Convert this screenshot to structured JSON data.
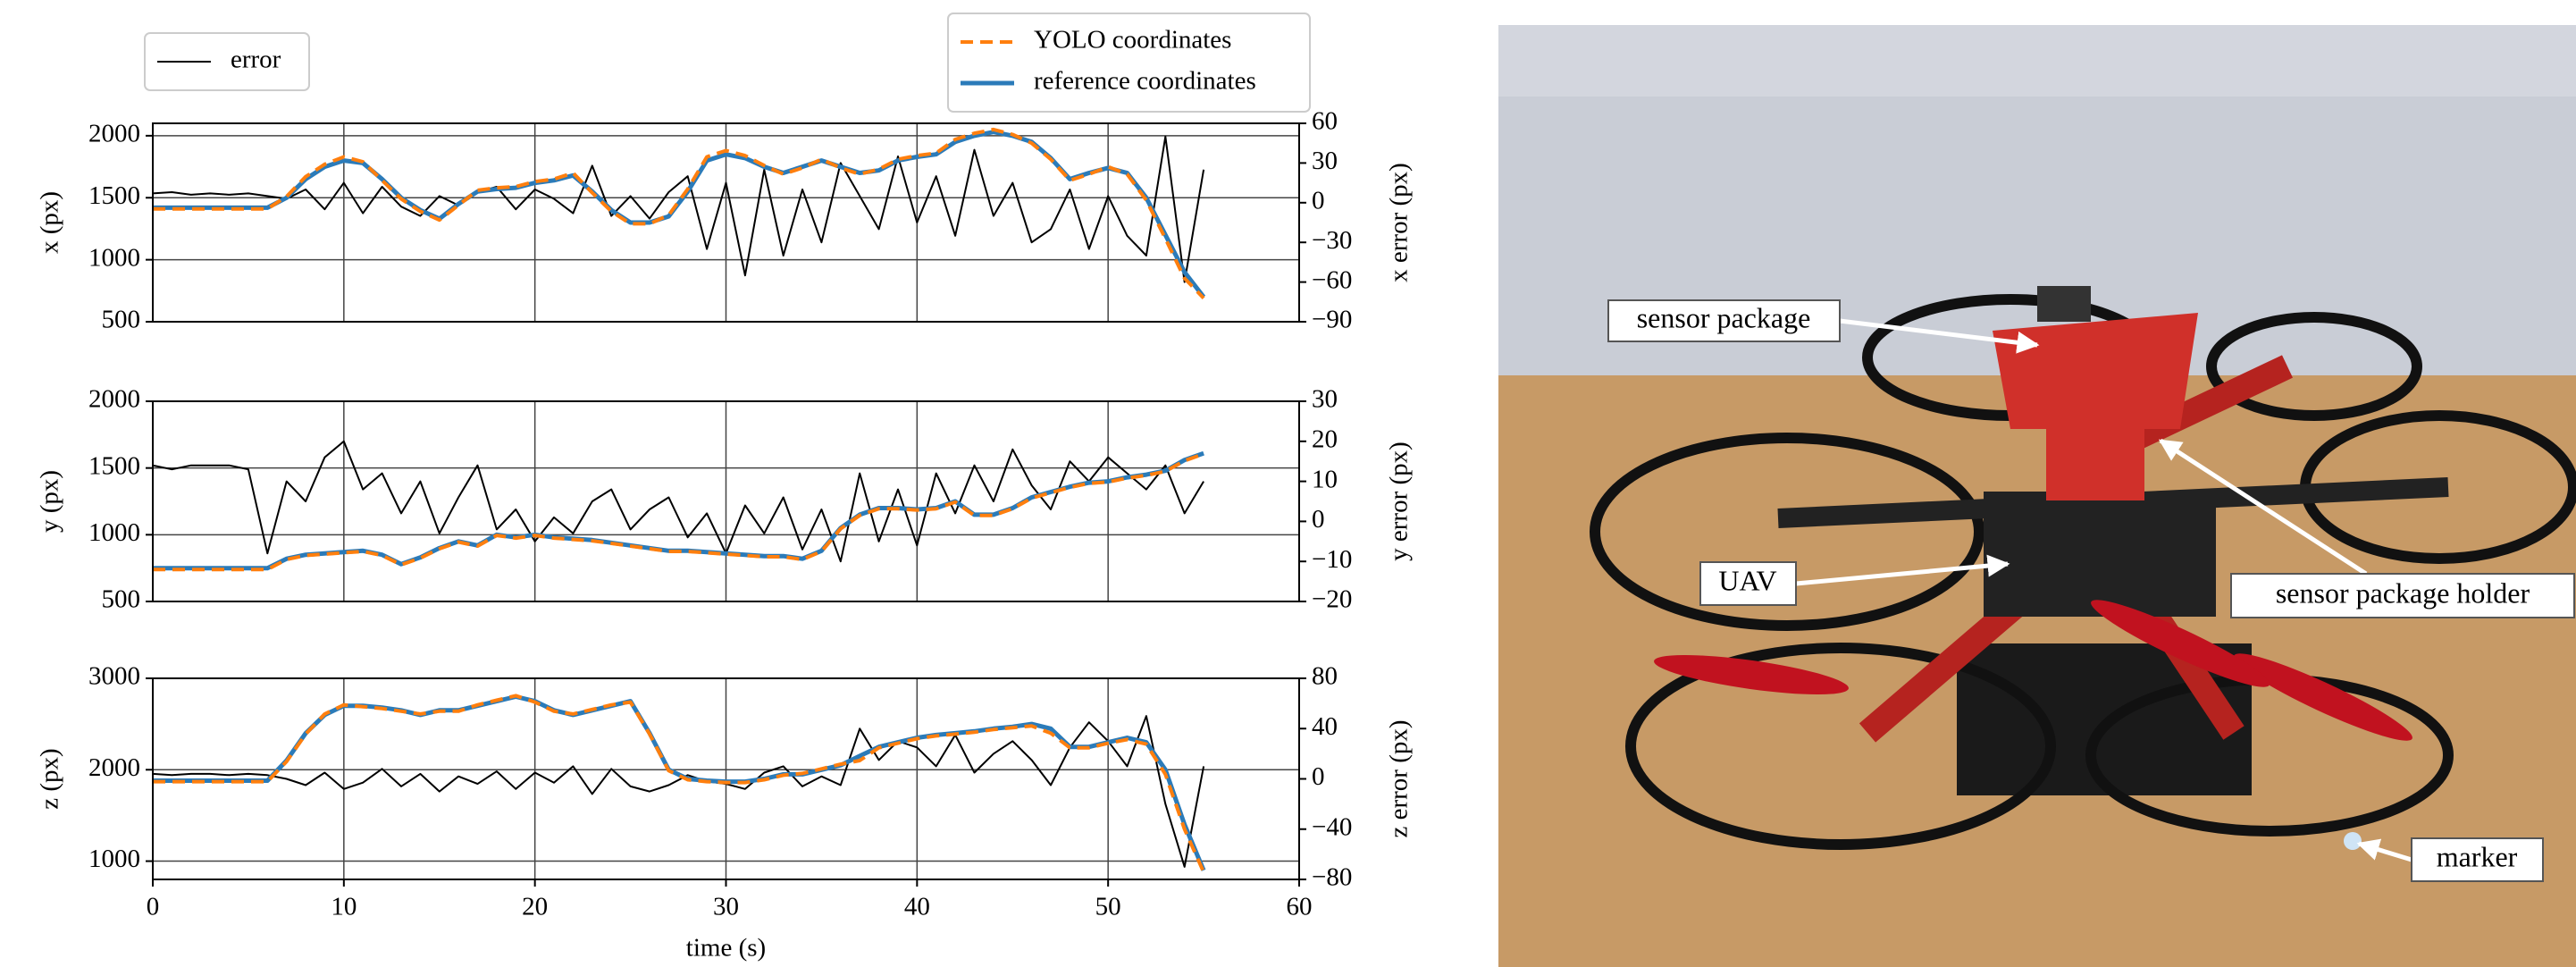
{
  "chart_data": [
    {
      "type": "line",
      "ylabel": "x (px)",
      "y2label": "x error (px)",
      "ylim": [
        500,
        2100
      ],
      "yticks": [
        500,
        1000,
        1500,
        2000
      ],
      "y2lim": [
        -90,
        60
      ],
      "y2ticks": [
        {
          "value": -90,
          "label": "−90"
        },
        {
          "value": -60,
          "label": "−60"
        },
        {
          "value": -30,
          "label": "−30"
        },
        0,
        30,
        60
      ],
      "grid": true,
      "x": [
        0,
        1,
        2,
        3,
        4,
        5,
        6,
        7,
        8,
        9,
        10,
        11,
        12,
        13,
        14,
        15,
        16,
        17,
        18,
        19,
        20,
        21,
        22,
        23,
        24,
        25,
        26,
        27,
        28,
        29,
        30,
        31,
        32,
        33,
        34,
        35,
        36,
        37,
        38,
        39,
        40,
        41,
        42,
        43,
        44,
        45,
        46,
        47,
        48,
        49,
        50,
        51,
        52,
        53,
        54,
        55
      ],
      "series": [
        {
          "name": "error",
          "color": "#000000",
          "axis": "y2",
          "values": [
            7,
            8,
            6,
            7,
            6,
            7,
            5,
            3,
            10,
            -5,
            15,
            -8,
            12,
            -3,
            -10,
            5,
            -2,
            8,
            12,
            -5,
            10,
            3,
            -8,
            28,
            -10,
            5,
            -12,
            8,
            20,
            -35,
            15,
            -55,
            25,
            -40,
            10,
            -30,
            30,
            5,
            -20,
            35,
            -15,
            20,
            -25,
            40,
            -10,
            15,
            -30,
            -20,
            10,
            -35,
            5,
            -25,
            -40,
            50,
            -60,
            25
          ]
        },
        {
          "name": "reference coordinates",
          "color": "#2b7bb9",
          "values": [
            1420,
            1420,
            1420,
            1420,
            1420,
            1420,
            1420,
            1500,
            1650,
            1750,
            1800,
            1780,
            1650,
            1500,
            1400,
            1330,
            1450,
            1550,
            1570,
            1580,
            1620,
            1640,
            1680,
            1550,
            1400,
            1300,
            1300,
            1350,
            1550,
            1800,
            1850,
            1820,
            1750,
            1700,
            1750,
            1800,
            1750,
            1700,
            1720,
            1800,
            1830,
            1850,
            1950,
            2000,
            2030,
            2000,
            1950,
            1820,
            1650,
            1700,
            1740,
            1700,
            1500,
            1200,
            900,
            700
          ]
        },
        {
          "name": "YOLO coordinates",
          "color": "#ff7f0e",
          "linestyle": "dashed",
          "values": [
            1410,
            1410,
            1410,
            1410,
            1410,
            1410,
            1410,
            1510,
            1670,
            1770,
            1830,
            1790,
            1640,
            1490,
            1390,
            1320,
            1440,
            1560,
            1580,
            1590,
            1630,
            1650,
            1700,
            1540,
            1390,
            1290,
            1290,
            1360,
            1570,
            1830,
            1880,
            1840,
            1760,
            1690,
            1740,
            1810,
            1740,
            1690,
            1730,
            1810,
            1840,
            1860,
            1970,
            2020,
            2050,
            2010,
            1940,
            1810,
            1640,
            1690,
            1750,
            1690,
            1480,
            1170,
            850,
            690
          ]
        }
      ]
    },
    {
      "type": "line",
      "ylabel": "y (px)",
      "y2label": "y error (px)",
      "ylim": [
        500,
        2000
      ],
      "yticks": [
        500,
        1000,
        1500,
        2000
      ],
      "y2lim": [
        -20,
        30
      ],
      "y2ticks": [
        {
          "value": -20,
          "label": "−20"
        },
        {
          "value": -10,
          "label": "−10"
        },
        0,
        10,
        20,
        30
      ],
      "grid": true,
      "x": [
        0,
        1,
        2,
        3,
        4,
        5,
        6,
        7,
        8,
        9,
        10,
        11,
        12,
        13,
        14,
        15,
        16,
        17,
        18,
        19,
        20,
        21,
        22,
        23,
        24,
        25,
        26,
        27,
        28,
        29,
        30,
        31,
        32,
        33,
        34,
        35,
        36,
        37,
        38,
        39,
        40,
        41,
        42,
        43,
        44,
        45,
        46,
        47,
        48,
        49,
        50,
        51,
        52,
        53,
        54,
        55
      ],
      "series": [
        {
          "color": "#000000",
          "axis": "y2",
          "values": [
            14,
            13,
            14,
            14,
            14,
            13,
            -8,
            10,
            5,
            16,
            20,
            8,
            12,
            2,
            10,
            -3,
            6,
            14,
            -2,
            3,
            -5,
            1,
            -3,
            5,
            8,
            -2,
            3,
            6,
            -4,
            2,
            -8,
            4,
            -3,
            6,
            -7,
            3,
            -10,
            12,
            -5,
            8,
            -6,
            12,
            2,
            14,
            5,
            18,
            9,
            3,
            15,
            10,
            16,
            12,
            8,
            14,
            2,
            10
          ]
        },
        {
          "color": "#2b7bb9",
          "values": [
            750,
            750,
            750,
            750,
            750,
            750,
            750,
            820,
            850,
            860,
            870,
            880,
            850,
            780,
            830,
            900,
            950,
            920,
            1000,
            980,
            1000,
            980,
            970,
            960,
            940,
            920,
            900,
            880,
            880,
            870,
            860,
            850,
            840,
            840,
            820,
            880,
            1050,
            1150,
            1200,
            1200,
            1190,
            1200,
            1250,
            1150,
            1150,
            1200,
            1280,
            1320,
            1360,
            1390,
            1400,
            1430,
            1450,
            1480,
            1560,
            1610
          ]
        },
        {
          "color": "#ff7f0e",
          "linestyle": "dashed",
          "values": [
            740,
            740,
            740,
            740,
            740,
            740,
            740,
            815,
            845,
            855,
            865,
            875,
            845,
            775,
            825,
            895,
            945,
            915,
            995,
            975,
            995,
            975,
            965,
            955,
            935,
            915,
            895,
            875,
            875,
            865,
            855,
            845,
            835,
            835,
            815,
            875,
            1045,
            1145,
            1195,
            1195,
            1185,
            1195,
            1245,
            1145,
            1145,
            1195,
            1275,
            1315,
            1355,
            1385,
            1395,
            1425,
            1445,
            1475,
            1555,
            1605
          ]
        }
      ]
    },
    {
      "type": "line",
      "ylabel": "z (px)",
      "y2label": "z error (px)",
      "xlabel": "time (s)",
      "xlim": [
        0,
        60
      ],
      "xticks": [
        0,
        10,
        20,
        30,
        40,
        50,
        60
      ],
      "ylim": [
        800,
        3000
      ],
      "yticks": [
        1000,
        2000,
        3000
      ],
      "y2lim": [
        -80,
        80
      ],
      "y2ticks": [
        {
          "value": -80,
          "label": "−80"
        },
        {
          "value": -40,
          "label": "−40"
        },
        0,
        40,
        80
      ],
      "grid": true,
      "x": [
        0,
        1,
        2,
        3,
        4,
        5,
        6,
        7,
        8,
        9,
        10,
        11,
        12,
        13,
        14,
        15,
        16,
        17,
        18,
        19,
        20,
        21,
        22,
        23,
        24,
        25,
        26,
        27,
        28,
        29,
        30,
        31,
        32,
        33,
        34,
        35,
        36,
        37,
        38,
        39,
        40,
        41,
        42,
        43,
        44,
        45,
        46,
        47,
        48,
        49,
        50,
        51,
        52,
        53,
        54,
        55
      ],
      "series": [
        {
          "color": "#000000",
          "axis": "y2",
          "values": [
            4,
            3,
            4,
            4,
            3,
            4,
            3,
            0,
            -5,
            5,
            -8,
            -3,
            8,
            -6,
            4,
            -10,
            2,
            -4,
            6,
            -8,
            5,
            -3,
            10,
            -12,
            8,
            -6,
            -10,
            -5,
            3,
            -2,
            -4,
            -8,
            5,
            10,
            -6,
            2,
            -5,
            40,
            15,
            30,
            25,
            10,
            35,
            5,
            20,
            30,
            15,
            -5,
            25,
            45,
            30,
            10,
            50,
            -20,
            -70,
            10
          ]
        },
        {
          "color": "#2b7bb9",
          "values": [
            1880,
            1880,
            1880,
            1880,
            1880,
            1880,
            1880,
            2100,
            2400,
            2600,
            2700,
            2700,
            2680,
            2650,
            2600,
            2650,
            2650,
            2700,
            2750,
            2800,
            2750,
            2650,
            2600,
            2650,
            2700,
            2750,
            2400,
            2000,
            1900,
            1880,
            1870,
            1870,
            1900,
            1950,
            1950,
            2000,
            2050,
            2150,
            2250,
            2300,
            2350,
            2380,
            2400,
            2420,
            2450,
            2470,
            2500,
            2450,
            2250,
            2250,
            2300,
            2350,
            2300,
            2000,
            1400,
            900
          ]
        },
        {
          "color": "#ff7f0e",
          "linestyle": "dashed",
          "values": [
            1870,
            1870,
            1870,
            1870,
            1870,
            1870,
            1870,
            2090,
            2390,
            2610,
            2710,
            2690,
            2670,
            2640,
            2610,
            2640,
            2640,
            2710,
            2760,
            2810,
            2740,
            2640,
            2610,
            2660,
            2710,
            2740,
            2390,
            1990,
            1890,
            1870,
            1860,
            1860,
            1890,
            1940,
            1960,
            2010,
            2060,
            2100,
            2240,
            2290,
            2340,
            2370,
            2390,
            2410,
            2440,
            2460,
            2480,
            2400,
            2240,
            2240,
            2290,
            2330,
            2280,
            1950,
            1350,
            880
          ]
        }
      ]
    }
  ],
  "photo": {
    "labels": [
      "sensor package",
      "UAV",
      "sensor package holder",
      "marker"
    ]
  }
}
